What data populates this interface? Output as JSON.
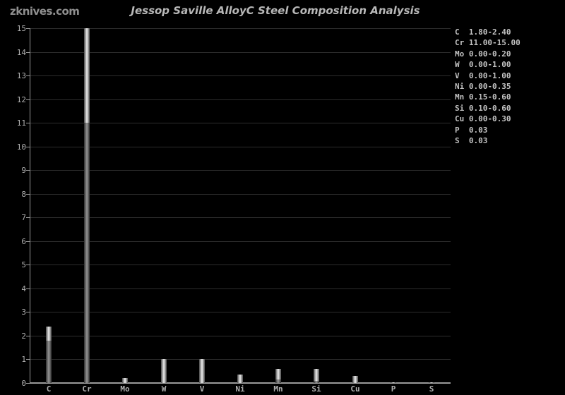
{
  "page": {
    "logo": "zknives.com",
    "title": "Jessop Saville AlloyC Steel Composition Analysis"
  },
  "chart_data": {
    "type": "bar",
    "title": "Jessop Saville AlloyC Steel Composition Analysis",
    "xlabel": "",
    "ylabel": "",
    "ylim": [
      0,
      15
    ],
    "ytick_step": 1,
    "grid": true,
    "legend_position": "right-top",
    "categories": [
      "C",
      "Cr",
      "Mo",
      "W",
      "V",
      "Ni",
      "Mn",
      "Si",
      "Cu",
      "P",
      "S"
    ],
    "series": [
      {
        "name": "min",
        "values": [
          1.8,
          11.0,
          0.0,
          0.0,
          0.0,
          0.0,
          0.15,
          0.1,
          0.0,
          0.0,
          0.0
        ]
      },
      {
        "name": "max",
        "values": [
          2.4,
          15.0,
          0.2,
          1.0,
          1.0,
          0.35,
          0.6,
          0.6,
          0.3,
          0.03,
          0.03
        ]
      }
    ],
    "legend_items": [
      {
        "element": "C",
        "value": "1.80-2.40"
      },
      {
        "element": "Cr",
        "value": "11.00-15.00"
      },
      {
        "element": "Mo",
        "value": "0.00-0.20"
      },
      {
        "element": "W",
        "value": "0.00-1.00"
      },
      {
        "element": "V",
        "value": "0.00-1.00"
      },
      {
        "element": "Ni",
        "value": "0.00-0.35"
      },
      {
        "element": "Mn",
        "value": "0.15-0.60"
      },
      {
        "element": "Si",
        "value": "0.10-0.60"
      },
      {
        "element": "Cu",
        "value": "0.00-0.30"
      },
      {
        "element": "P",
        "value": "0.03"
      },
      {
        "element": "S",
        "value": "0.03"
      }
    ]
  },
  "colors": {
    "background": "#000000",
    "title_text": "#b8b8b8",
    "logo_text": "#8f8f8f",
    "axis_line": "#9a9a9a",
    "grid_line": "#2d2d2d",
    "tick_label": "#b0b0b0",
    "legend_text": "#c2c2c2",
    "bar_range_center": "#eeeeee",
    "bar_range_edge": "#4a4a4a",
    "bar_base_center": "#969696",
    "bar_base_edge": "#2f2f2f"
  }
}
